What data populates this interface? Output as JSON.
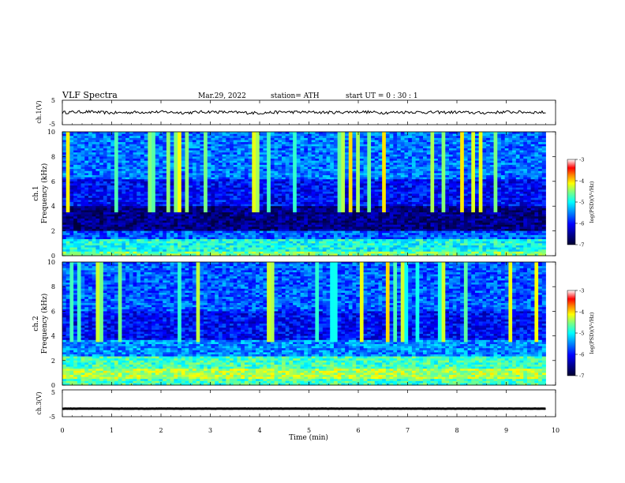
{
  "header": {
    "title": "VLF  Spectra",
    "date": "Mar.29, 2022",
    "station": "station= ATH",
    "start": "start  UT  =    0  : 30 : 1"
  },
  "colors": {
    "colormap": [
      "#000030",
      "#00008f",
      "#0000ff",
      "#007fff",
      "#00ffff",
      "#7fff7f",
      "#ffff00",
      "#ff7f00",
      "#ff0000",
      "#ffffff"
    ],
    "trace": "#000000",
    "background": "#ffffff"
  },
  "chart_data": [
    {
      "type": "line",
      "panel": "ch.1 waveform",
      "ylabel": "ch.1(V)",
      "ylim": [
        -5,
        5
      ],
      "yticks": [
        "5",
        "-5"
      ],
      "x": [
        0,
        0.5,
        1,
        1.5,
        2,
        2.5,
        3,
        3.5,
        4,
        4.5,
        5,
        5.5,
        6,
        6.5,
        7,
        7.5,
        8,
        8.5,
        9,
        9.5,
        9.8
      ],
      "y": [
        0,
        0.3,
        -0.2,
        0.1,
        0.2,
        -0.1,
        0.3,
        0,
        -0.2,
        0.2,
        0.1,
        0,
        0.3,
        -0.1,
        0.2,
        0,
        0.1,
        -0.2,
        0.2,
        0.1,
        0
      ]
    },
    {
      "type": "heatmap",
      "panel": "ch.1 spectrogram",
      "ylabel": "ch.1\nFrequency  (kHz)",
      "ylim": [
        0,
        10
      ],
      "yticks": [
        "0",
        "2",
        "4",
        "6",
        "8",
        "10"
      ],
      "colorbar": {
        "label": "log(PSD)(V²/Hz)",
        "range": [
          -7,
          -3
        ],
        "ticks": [
          "-3",
          "-4",
          "-5",
          "-6",
          "-7"
        ]
      }
    },
    {
      "type": "heatmap",
      "panel": "ch.2 spectrogram",
      "ylabel": "ch.2\nFrequency  (kHz)",
      "ylim": [
        0,
        10
      ],
      "yticks": [
        "0",
        "2",
        "4",
        "6",
        "8",
        "10"
      ],
      "colorbar": {
        "label": "log(PSD)(V²/Hz)",
        "range": [
          -7,
          -3
        ],
        "ticks": [
          "-3",
          "-4",
          "-5",
          "-6",
          "-7"
        ]
      }
    },
    {
      "type": "line",
      "panel": "ch.3 waveform",
      "ylabel": "ch.3(V)",
      "ylim": [
        -5,
        5
      ],
      "yticks": [
        "5",
        "-5"
      ],
      "x": [
        0,
        9.8
      ],
      "y": [
        -2,
        -2
      ]
    }
  ],
  "xaxis": {
    "label": "Time  (min)",
    "range": [
      0,
      10
    ],
    "ticks": [
      "0",
      "1",
      "2",
      "3",
      "4",
      "5",
      "6",
      "7",
      "8",
      "9",
      "10"
    ],
    "data_end": 9.8
  }
}
